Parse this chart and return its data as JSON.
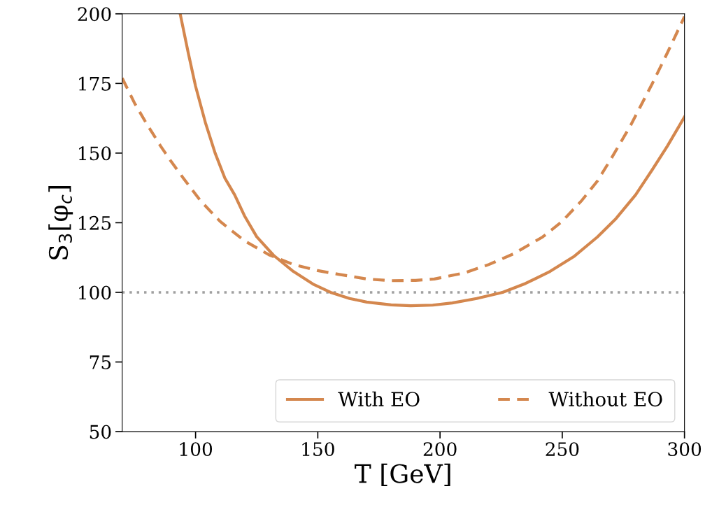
{
  "chart_data": {
    "type": "line",
    "xlabel": "T [GeV]",
    "ylabel": "S$_{3}$[φ$_{c}$]",
    "xlim": [
      70,
      300
    ],
    "ylim": [
      50,
      200
    ],
    "xticks": [
      100,
      150,
      200,
      250,
      300
    ],
    "yticks": [
      50,
      75,
      100,
      125,
      150,
      175,
      200
    ],
    "grid": false,
    "legend": "bottom right",
    "series": [
      {
        "name": "With EO",
        "color": "#d4874e",
        "line_style": "solid",
        "x": [
          93.7,
          97,
          100,
          104,
          108,
          112,
          116,
          120,
          125,
          131.9,
          140,
          148,
          155.2,
          163,
          170,
          180,
          188,
          197,
          205,
          215,
          225.6,
          235,
          245,
          255,
          264.4,
          272,
          280,
          286.8,
          293,
          300
        ],
        "values": [
          200,
          186,
          174,
          161,
          150,
          141,
          135,
          127.5,
          120,
          113.3,
          107.5,
          103,
          100,
          97.8,
          96.5,
          95.5,
          95.2,
          95.4,
          96.2,
          97.8,
          100,
          103.2,
          107.5,
          113,
          119.9,
          126.5,
          135,
          144,
          152.5,
          163
        ]
      },
      {
        "name": "Without EO",
        "color": "#d4874e",
        "line_style": "dashed",
        "x": [
          70,
          75,
          80,
          85.8,
          90,
          95,
          102,
          110,
          120,
          130,
          140,
          150,
          158.4,
          170,
          180,
          190,
          197.7,
          210,
          220,
          230,
          242,
          250,
          258,
          264.4,
          270,
          278,
          286.8,
          293,
          300
        ],
        "values": [
          176.9,
          168,
          160.5,
          152.4,
          147,
          141,
          132.9,
          125.5,
          118.5,
          113.5,
          110,
          107.8,
          106.5,
          104.8,
          104.2,
          104.3,
          104.8,
          107,
          110,
          113.8,
          119.9,
          125.5,
          133,
          140,
          148,
          160,
          174.9,
          186,
          199
        ]
      }
    ],
    "ref_lines": [
      {
        "axis": "y",
        "value": 100,
        "color": "#a0a0a0",
        "line_style": "dotted"
      }
    ]
  }
}
